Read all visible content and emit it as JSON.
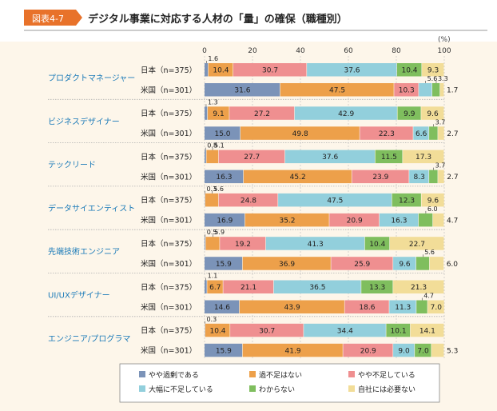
{
  "figure": {
    "label": "図表4-7",
    "title": "デジタル事業に対応する人材の「量」の確保（職種別）"
  },
  "colors": {
    "badge": "#e8722a",
    "title_rule": "#999999",
    "background_panel": "#fdf6ea",
    "separator": "#b0b0b0",
    "group_label": "#1a7ab8"
  },
  "chart_data": {
    "type": "bar",
    "orientation": "horizontal",
    "stacked": true,
    "unit": "(%)",
    "xlim": [
      0,
      100
    ],
    "ticks": [
      0,
      20,
      40,
      60,
      80,
      100
    ],
    "grid": true,
    "legend_position": "bottom",
    "series": [
      {
        "name": "やや過剰である",
        "color": "#7b93b8"
      },
      {
        "name": "過不足はない",
        "color": "#eda04a"
      },
      {
        "name": "やや不足している",
        "color": "#ef8f90"
      },
      {
        "name": "大幅に不足している",
        "color": "#92cfdc"
      },
      {
        "name": "わからない",
        "color": "#7fbe5e"
      },
      {
        "name": "自社には必要ない",
        "color": "#f2dd98"
      }
    ],
    "groups": [
      {
        "name": "プロダクトマネージャー",
        "rows": [
          {
            "label": "日本（n=375）",
            "values": [
              1.6,
              10.4,
              30.7,
              37.6,
              10.4,
              9.3
            ]
          },
          {
            "label": "米国（n=301）",
            "values": [
              31.6,
              47.5,
              10.3,
              5.6,
              3.3,
              1.7
            ]
          }
        ]
      },
      {
        "name": "ビジネスデザイナー",
        "rows": [
          {
            "label": "日本（n=375）",
            "values": [
              1.3,
              9.1,
              27.2,
              42.9,
              9.9,
              9.6
            ]
          },
          {
            "label": "米国（n=301）",
            "values": [
              15.0,
              49.8,
              22.3,
              6.6,
              3.7,
              2.7
            ]
          }
        ]
      },
      {
        "name": "テックリード",
        "rows": [
          {
            "label": "日本（n=375）",
            "values": [
              0.8,
              5.1,
              27.7,
              37.6,
              11.5,
              17.3
            ]
          },
          {
            "label": "米国（n=301）",
            "values": [
              16.3,
              45.2,
              23.9,
              8.3,
              3.7,
              2.7
            ]
          }
        ]
      },
      {
        "name": "データサイエンティスト",
        "rows": [
          {
            "label": "日本（n=375）",
            "values": [
              0.3,
              5.6,
              24.8,
              47.5,
              12.3,
              9.6
            ]
          },
          {
            "label": "米国（n=301）",
            "values": [
              16.9,
              35.2,
              20.9,
              16.3,
              6.0,
              4.7
            ]
          }
        ]
      },
      {
        "name": "先端技術エンジニア",
        "rows": [
          {
            "label": "日本（n=375）",
            "values": [
              0.5,
              5.9,
              19.2,
              41.3,
              10.4,
              22.7
            ]
          },
          {
            "label": "米国（n=301）",
            "values": [
              15.9,
              36.9,
              25.9,
              9.6,
              5.6,
              6.0
            ]
          }
        ]
      },
      {
        "name": "UI/UXデザイナー",
        "rows": [
          {
            "label": "日本（n=375）",
            "values": [
              1.1,
              6.7,
              21.1,
              36.5,
              13.3,
              21.3
            ]
          },
          {
            "label": "米国（n=301）",
            "values": [
              14.6,
              43.9,
              18.6,
              11.3,
              4.7,
              7.0
            ]
          }
        ]
      },
      {
        "name": "エンジニア/プログラマ",
        "rows": [
          {
            "label": "日本（n=375）",
            "values": [
              0.3,
              10.4,
              30.7,
              34.4,
              10.1,
              14.1
            ]
          },
          {
            "label": "米国（n=301）",
            "values": [
              15.9,
              41.9,
              20.9,
              9.0,
              7.0,
              5.3
            ]
          }
        ]
      }
    ]
  }
}
